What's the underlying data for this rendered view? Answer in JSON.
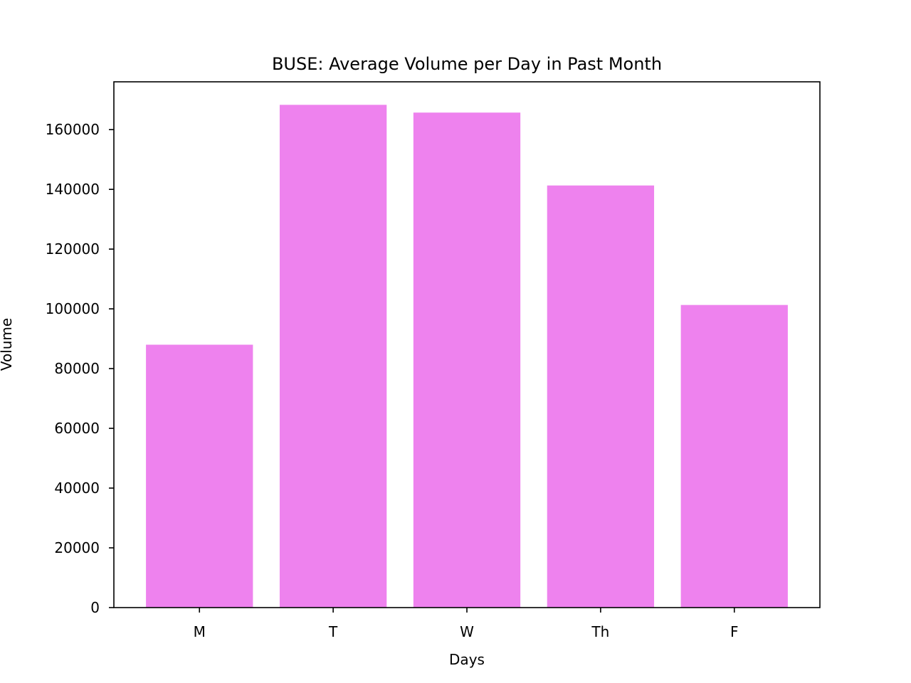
{
  "chart_data": {
    "type": "bar",
    "title": "BUSE: Average Volume per Day in Past Month",
    "xlabel": "Days",
    "ylabel": "Volume",
    "categories": [
      "M",
      "T",
      "W",
      "Th",
      "F"
    ],
    "values": [
      88000,
      168300,
      165700,
      141300,
      101300
    ],
    "ylim": [
      0,
      176000
    ],
    "yticks": [
      0,
      20000,
      40000,
      60000,
      80000,
      100000,
      120000,
      140000,
      160000
    ],
    "ytick_labels": [
      "0",
      "20000",
      "40000",
      "60000",
      "80000",
      "100000",
      "120000",
      "140000",
      "160000"
    ],
    "bar_color": "#ee82ee",
    "grid": false
  }
}
